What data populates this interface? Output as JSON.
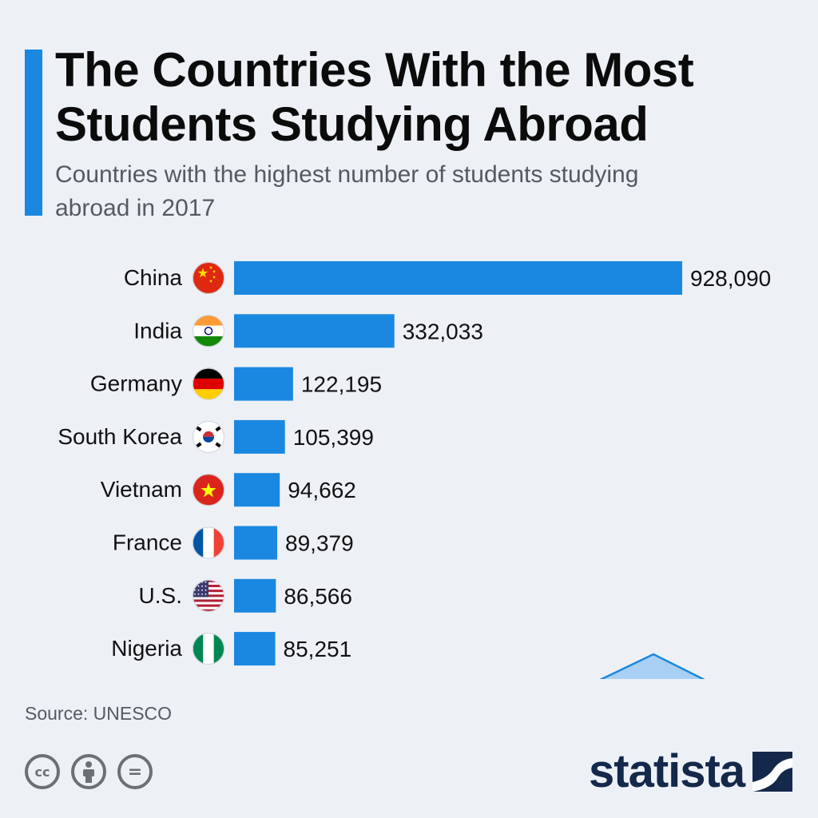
{
  "header": {
    "title": "The Countries With the Most Students Studying Abroad",
    "subtitle": "Countries with the highest number of students studying abroad in 2017"
  },
  "chart_data": {
    "type": "bar",
    "orientation": "horizontal",
    "title": "The Countries With the Most Students Studying Abroad",
    "subtitle": "Countries with the highest number of students studying abroad in 2017",
    "categories": [
      "China",
      "India",
      "Germany",
      "South Korea",
      "Vietnam",
      "France",
      "U.S.",
      "Nigeria"
    ],
    "values": [
      928090,
      332033,
      122195,
      105399,
      94662,
      89379,
      86566,
      85251
    ],
    "value_labels": [
      "928,090",
      "332,033",
      "122,195",
      "105,399",
      "94,662",
      "89,379",
      "86,566",
      "85,251"
    ],
    "xlim": [
      0,
      928090
    ],
    "grid": false,
    "legend": "none",
    "bar_color": "#1a88e0"
  },
  "flags": [
    "china-flag-icon",
    "india-flag-icon",
    "germany-flag-icon",
    "south-korea-flag-icon",
    "vietnam-flag-icon",
    "france-flag-icon",
    "us-flag-icon",
    "nigeria-flag-icon"
  ],
  "decoration": {
    "icon": "graduation-cap-globe-icon",
    "color": "#1a88e0"
  },
  "footer": {
    "source": "Source: UNESCO",
    "license_icons": [
      "cc-icon",
      "attribution-icon",
      "no-derivatives-icon"
    ],
    "cc_text": "cc",
    "nd_text": "=",
    "logo": "statista"
  },
  "colors": {
    "accent": "#1a88e0",
    "text": "#111111",
    "muted": "#555a60",
    "brand": "#14284b",
    "background": "#edf1f6"
  }
}
